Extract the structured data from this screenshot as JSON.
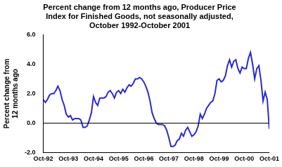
{
  "chart_data": {
    "type": "line",
    "title": [
      "Percent change from 12 months ago, Producer Price",
      "Index for Finished Goods, not seasonally adjusted,",
      "October 1992-October 2001"
    ],
    "ylabel": [
      "Percent change from",
      "12 months ago"
    ],
    "categories": [
      "Oct-92",
      null,
      null,
      null,
      null,
      null,
      null,
      null,
      null,
      null,
      null,
      null,
      "Oct-93",
      null,
      null,
      null,
      null,
      null,
      null,
      null,
      null,
      null,
      null,
      null,
      "Oct-94",
      null,
      null,
      null,
      null,
      null,
      null,
      null,
      null,
      null,
      null,
      null,
      "Oct-95",
      null,
      null,
      null,
      null,
      null,
      null,
      null,
      null,
      null,
      null,
      null,
      "Oct-96",
      null,
      null,
      null,
      null,
      null,
      null,
      null,
      null,
      null,
      null,
      null,
      "Oct-97",
      null,
      null,
      null,
      null,
      null,
      null,
      null,
      null,
      null,
      null,
      null,
      "Oct-98",
      null,
      null,
      null,
      null,
      null,
      null,
      null,
      null,
      null,
      null,
      null,
      "Oct-99",
      null,
      null,
      null,
      null,
      null,
      null,
      null,
      null,
      null,
      null,
      null,
      "Oct-00",
      null,
      null,
      null,
      null,
      null,
      null,
      null,
      null,
      null,
      null,
      null,
      "Oct-01"
    ],
    "values": [
      1.6,
      1.4,
      1.6,
      1.9,
      2.0,
      2.0,
      2.2,
      2.5,
      2.2,
      1.6,
      1.2,
      0.6,
      0.4,
      0.5,
      0.2,
      0.3,
      0.3,
      0.3,
      0.2,
      -0.3,
      -0.3,
      -0.2,
      0.2,
      0.7,
      1.8,
      1.4,
      1.2,
      1.7,
      1.7,
      1.7,
      1.8,
      2.1,
      2.2,
      2.0,
      1.7,
      2.1,
      2.2,
      2.0,
      2.3,
      2.1,
      2.4,
      2.6,
      2.5,
      2.7,
      3.0,
      3.0,
      3.1,
      3.0,
      2.8,
      2.5,
      2.1,
      1.5,
      0.7,
      0.3,
      0.0,
      -0.1,
      -0.1,
      -0.1,
      -0.2,
      -0.5,
      -1.0,
      -1.6,
      -1.6,
      -1.5,
      -1.2,
      -1.1,
      -0.7,
      -0.9,
      -0.5,
      -0.3,
      -0.6,
      -0.9,
      -0.8,
      -0.6,
      -0.2,
      0.6,
      0.3,
      0.6,
      1.0,
      1.2,
      1.4,
      1.5,
      2.0,
      2.9,
      3.0,
      2.8,
      2.9,
      3.2,
      3.9,
      4.3,
      3.8,
      4.2,
      4.3,
      3.7,
      3.4,
      3.8,
      3.7,
      3.7,
      4.4,
      4.8,
      4.0,
      3.0,
      3.7,
      3.9,
      2.9,
      1.5,
      2.1,
      1.6,
      -0.4
    ],
    "color": "#2a2ad0",
    "ylim": [
      -2,
      6
    ],
    "yticks": [
      {
        "value": -2,
        "label": "-2.0"
      },
      {
        "value": 0,
        "label": "0.0"
      },
      {
        "value": 2,
        "label": "2.0"
      },
      {
        "value": 4,
        "label": "4.0"
      },
      {
        "value": 6,
        "label": "6.0"
      }
    ],
    "grid": false
  }
}
